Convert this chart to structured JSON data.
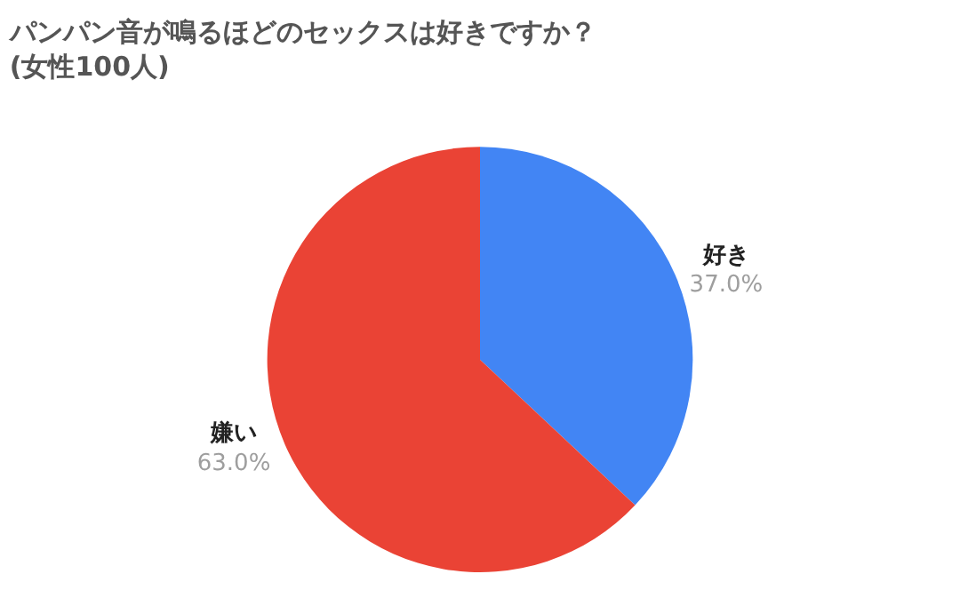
{
  "chart_data": {
    "type": "pie",
    "title": "パンパン音が鳴るほどのセックスは好きですか？\n(女性100人)",
    "categories": [
      "好き",
      "嫌い"
    ],
    "values": [
      37.0,
      63.0
    ],
    "value_labels": [
      "37.0%",
      "63.0%"
    ],
    "colors": [
      "#4285f4",
      "#ea4335"
    ],
    "legend": false
  }
}
